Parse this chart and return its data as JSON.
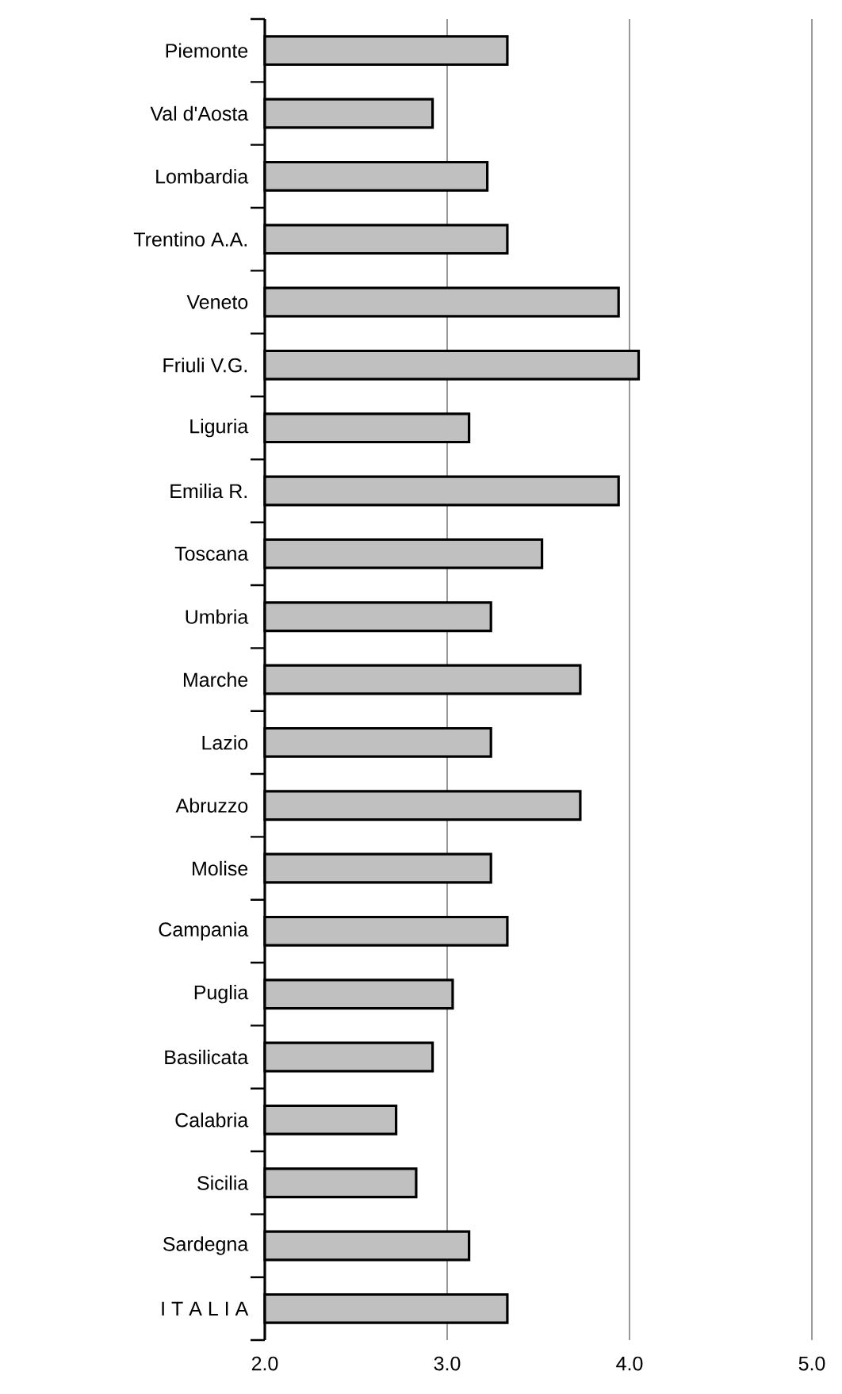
{
  "chart_data": {
    "type": "bar",
    "orientation": "horizontal",
    "categories": [
      "Piemonte",
      "Val  d'Aosta",
      "Lombardia",
      "Trentino A.A.",
      "Veneto",
      "Friuli V.G.",
      "Liguria",
      "Emilia  R.",
      "Toscana",
      "Umbria",
      "Marche",
      "Lazio",
      "Abruzzo",
      "Molise",
      "Campania",
      "Puglia",
      "Basilicata",
      "Calabria",
      "Sicilia",
      "Sardegna",
      "I T A L I A"
    ],
    "values": [
      3.33,
      2.92,
      3.22,
      3.33,
      3.94,
      4.05,
      3.12,
      3.94,
      3.52,
      3.24,
      3.73,
      3.24,
      3.73,
      3.24,
      3.33,
      3.03,
      2.92,
      2.72,
      2.83,
      3.12,
      3.33
    ],
    "color": "#c0c0c0",
    "xlim": [
      2,
      5
    ],
    "xticks": [
      {
        "value": 2,
        "label": "2.0"
      },
      {
        "value": 3,
        "label": "3.0"
      },
      {
        "value": 4,
        "label": "4.0"
      },
      {
        "value": 5,
        "label": "5.0"
      }
    ],
    "grid": "x"
  }
}
